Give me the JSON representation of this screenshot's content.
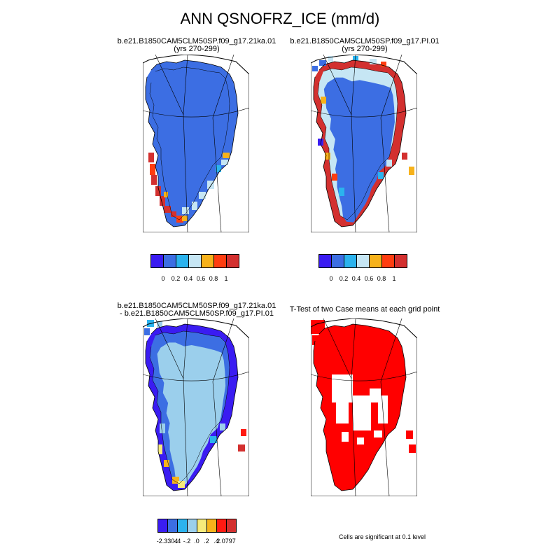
{
  "title": "ANN QSNOFRZ_ICE (mm/d)",
  "colors": {
    "palette7": [
      "#3a1cf2",
      "#3c6ee3",
      "#2bb3ee",
      "#c6e6f4",
      "#f7b21b",
      "#ff3d10",
      "#d3302f"
    ],
    "palette8": [
      "#3a1cf2",
      "#3c6ee3",
      "#2bb3ee",
      "#9bcfec",
      "#f6ea7b",
      "#f7b21b",
      "#ff1a12",
      "#d3302f"
    ],
    "significant": "#ff0000",
    "coastline": "#000000",
    "graticule": "#000000"
  },
  "panels": [
    {
      "title_line1": "b.e21.B1850CAM5CLM50SP.f09_g17.21ka.01",
      "title_line2": "(yrs 270-299)",
      "legend_ticks": [
        "0",
        "0.2",
        "0.4",
        "0.6",
        "0.8",
        "1"
      ]
    },
    {
      "title_line1": "b.e21.B1850CAM5CLM50SP.f09_g17.PI.01",
      "title_line2": "(yrs 270-299)",
      "legend_ticks": [
        "0",
        "0.2",
        "0.4",
        "0.6",
        "0.8",
        "1"
      ]
    },
    {
      "title_line1": "b.e21.B1850CAM5CLM50SP.f09_g17.21ka.01",
      "title_line2": "- b.e21.B1850CAM5CLM50SP.f09_g17.PI.01",
      "legend_ticks": [
        "-2.3304",
        "-.4",
        "-.2",
        ".0",
        ".2",
        ".4",
        "2.0797"
      ]
    },
    {
      "title_line1": "T-Test of two Case means at each grid point",
      "note": "Cells are significant at 0.1 level"
    }
  ]
}
